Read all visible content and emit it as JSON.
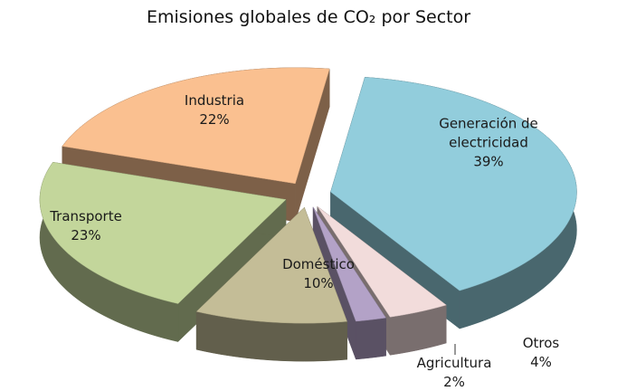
{
  "chart_data": {
    "type": "pie",
    "title": "Emisiones globales de CO₂ por Sector",
    "categories": [
      "Generación de electricidad",
      "Otros",
      "Agricultura",
      "Doméstico",
      "Transporte",
      "Industria"
    ],
    "values": [
      39,
      4,
      2,
      10,
      23,
      22
    ],
    "value_labels": [
      "39%",
      "4%",
      "2%",
      "10%",
      "23%",
      "22%"
    ],
    "colors": [
      "#92cddc",
      "#f2dcdb",
      "#b3a2c7",
      "#c4bd97",
      "#c3d69b",
      "#fac090"
    ]
  }
}
